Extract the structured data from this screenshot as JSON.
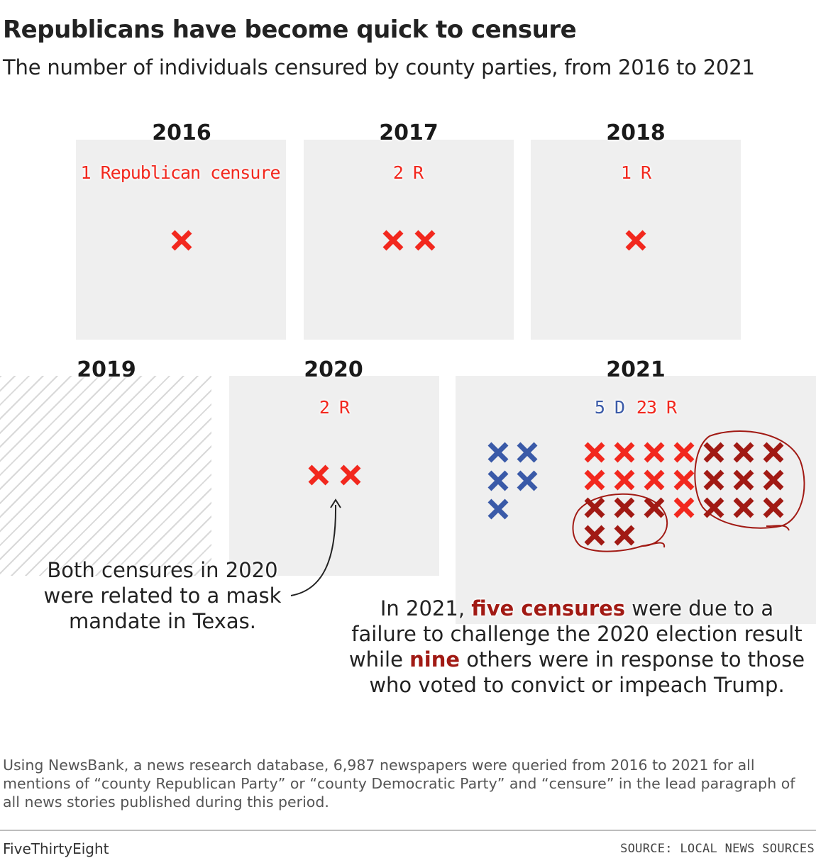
{
  "header": {
    "title": "Republicans have become quick to censure",
    "subtitle": "The number of individuals censured by county parties, from 2016 to 2021"
  },
  "colors": {
    "republican": "#f2281e",
    "republican_highlight": "#a11a14",
    "democrat": "#3a5aa8",
    "panel": "#efefef"
  },
  "chart_data": {
    "type": "bar",
    "title": "Republicans have become quick to censure",
    "subtitle": "The number of individuals censured by county parties, from 2016 to 2021",
    "categories": [
      "2016",
      "2017",
      "2018",
      "2019",
      "2020",
      "2021"
    ],
    "series": [
      {
        "name": "Republican",
        "values": [
          1,
          2,
          1,
          0,
          2,
          23
        ]
      },
      {
        "name": "Democrat",
        "values": [
          0,
          0,
          0,
          0,
          0,
          5
        ]
      }
    ],
    "panel_labels": [
      "1 Republican censure",
      "2 R",
      "1 R",
      "",
      "2 R",
      "5 D|23 R"
    ],
    "highlighted_2021": {
      "failure_to_challenge_2020_election": 5,
      "voted_to_convict_or_impeach_trump": 9
    },
    "no_data_years": [
      "2019"
    ]
  },
  "panels": [
    {
      "year": "2016",
      "labels": [
        {
          "text": "1 Republican censure",
          "party": "rep"
        }
      ]
    },
    {
      "year": "2017",
      "labels": [
        {
          "text": "2 R",
          "party": "rep"
        }
      ]
    },
    {
      "year": "2018",
      "labels": [
        {
          "text": "1 R",
          "party": "rep"
        }
      ]
    },
    {
      "year": "2019",
      "labels": []
    },
    {
      "year": "2020",
      "labels": [
        {
          "text": "2 R",
          "party": "rep"
        }
      ]
    },
    {
      "year": "2021",
      "labels": [
        {
          "text": "5 D",
          "party": "dem"
        },
        {
          "text": "23 R",
          "party": "rep"
        }
      ]
    }
  ],
  "annotations": {
    "mask": [
      "Both censures in 2020",
      "were related to a mask",
      "mandate in Texas."
    ],
    "y2021": {
      "l1_pre": "In 2021, ",
      "l1_hl": "five censures",
      "l1_post": " were due to a",
      "l2": "failure to challenge the 2020 election result",
      "l3_pre": "while ",
      "l3_hl": "nine",
      "l3_post": " others were in response to those",
      "l4": "who voted to convict or impeach Trump."
    }
  },
  "footer": {
    "methodology": "Using NewsBank, a news research database, 6,987 newspapers were queried from 2016 to 2021 for all mentions of “county Republican Party” or “county Democratic Party” and “censure” in the lead paragraph of all news stories published during this period.",
    "brand": "FiveThirtyEight",
    "source": "SOURCE: LOCAL NEWS SOURCES"
  }
}
